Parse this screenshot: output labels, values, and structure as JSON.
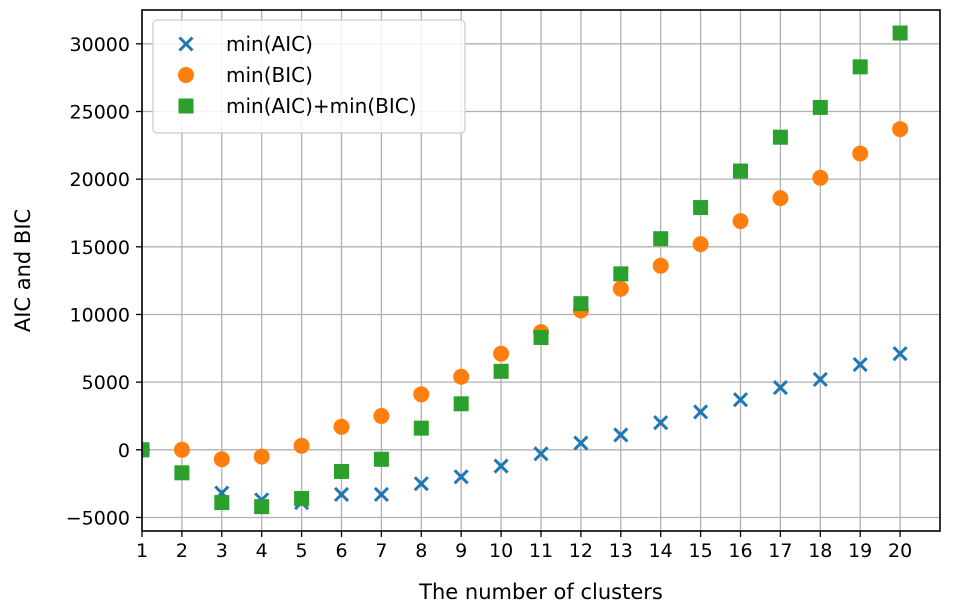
{
  "chart_data": {
    "type": "scatter",
    "title": "",
    "xlabel": "The number of clusters",
    "ylabel": "AIC and BIC",
    "xlim": [
      1,
      21
    ],
    "ylim": [
      -6000,
      32500
    ],
    "xticks": [
      1,
      2,
      3,
      4,
      5,
      6,
      7,
      8,
      9,
      10,
      11,
      12,
      13,
      14,
      15,
      16,
      17,
      18,
      19,
      20
    ],
    "yticks": [
      -5000,
      0,
      5000,
      10000,
      15000,
      20000,
      25000,
      30000
    ],
    "ytick_labels": [
      "−5000",
      "0",
      "5000",
      "10000",
      "15000",
      "20000",
      "25000",
      "30000"
    ],
    "grid": true,
    "legend_position": "top-left",
    "series": [
      {
        "name": "min(AIC)",
        "marker": "x",
        "color": "#1f77b4",
        "x": [
          1,
          2,
          3,
          4,
          5,
          6,
          7,
          8,
          9,
          10,
          11,
          12,
          13,
          14,
          15,
          16,
          17,
          18,
          19,
          20
        ],
        "values": [
          0,
          -1700,
          -3200,
          -3700,
          -3900,
          -3300,
          -3300,
          -2500,
          -2000,
          -1200,
          -300,
          500,
          1100,
          2000,
          2800,
          3700,
          4600,
          5200,
          6300,
          7100
        ]
      },
      {
        "name": "min(BIC)",
        "marker": "circle",
        "color": "#ff7f0e",
        "x": [
          1,
          2,
          3,
          4,
          5,
          6,
          7,
          8,
          9,
          10,
          11,
          12,
          13,
          14,
          15,
          16,
          17,
          18,
          19,
          20
        ],
        "values": [
          0,
          0,
          -700,
          -500,
          300,
          1700,
          2500,
          4100,
          5400,
          7100,
          8700,
          10300,
          11900,
          13600,
          15200,
          16900,
          18600,
          20100,
          21900,
          23700
        ]
      },
      {
        "name": "min(AIC)+min(BIC)",
        "marker": "square",
        "color": "#2ca02c",
        "x": [
          1,
          2,
          3,
          4,
          5,
          6,
          7,
          8,
          9,
          10,
          11,
          12,
          13,
          14,
          15,
          16,
          17,
          18,
          19,
          20
        ],
        "values": [
          0,
          -1700,
          -3900,
          -4200,
          -3600,
          -1600,
          -700,
          1600,
          3400,
          5800,
          8300,
          10800,
          13000,
          15600,
          17900,
          20600,
          23100,
          25300,
          28300,
          30800
        ]
      }
    ]
  }
}
